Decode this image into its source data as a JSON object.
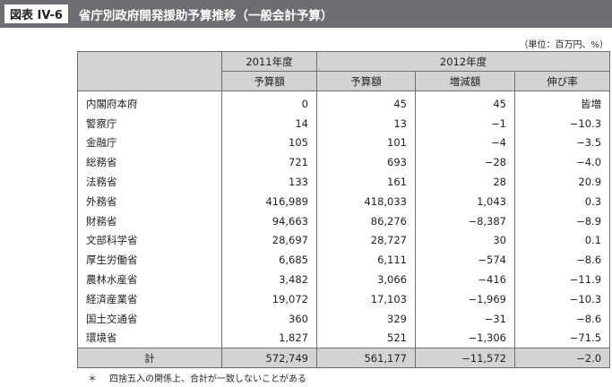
{
  "header": {
    "figure_label": "図表 IV-6",
    "title": "省庁別政府開発援助予算推移（一般会計予算）"
  },
  "unit_note": "（単位：百万円、%）",
  "table": {
    "year_2011": "2011年度",
    "year_2012": "2012年度",
    "columns": [
      "予算額",
      "予算額",
      "増減額",
      "伸び率"
    ],
    "rows": [
      {
        "name": "内閣府本府",
        "b2011": "0",
        "b2012": "45",
        "change": "45",
        "rate": "皆増"
      },
      {
        "name": "警察庁",
        "b2011": "14",
        "b2012": "13",
        "change": "−1",
        "rate": "−10.3"
      },
      {
        "name": "金融庁",
        "b2011": "105",
        "b2012": "101",
        "change": "−4",
        "rate": "−3.5"
      },
      {
        "name": "総務省",
        "b2011": "721",
        "b2012": "693",
        "change": "−28",
        "rate": "−4.0"
      },
      {
        "name": "法務省",
        "b2011": "133",
        "b2012": "161",
        "change": "28",
        "rate": "20.9"
      },
      {
        "name": "外務省",
        "b2011": "416,989",
        "b2012": "418,033",
        "change": "1,043",
        "rate": "0.3"
      },
      {
        "name": "財務省",
        "b2011": "94,663",
        "b2012": "86,276",
        "change": "−8,387",
        "rate": "−8.9"
      },
      {
        "name": "文部科学省",
        "b2011": "28,697",
        "b2012": "28,727",
        "change": "30",
        "rate": "0.1"
      },
      {
        "name": "厚生労働省",
        "b2011": "6,685",
        "b2012": "6,111",
        "change": "−574",
        "rate": "−8.6"
      },
      {
        "name": "農林水産省",
        "b2011": "3,482",
        "b2012": "3,066",
        "change": "−416",
        "rate": "−11.9"
      },
      {
        "name": "経済産業省",
        "b2011": "19,072",
        "b2012": "17,103",
        "change": "−1,969",
        "rate": "−10.3"
      },
      {
        "name": "国土交通省",
        "b2011": "360",
        "b2012": "329",
        "change": "−31",
        "rate": "−8.6"
      },
      {
        "name": "環境省",
        "b2011": "1,827",
        "b2012": "521",
        "change": "−1,306",
        "rate": "−71.5"
      }
    ],
    "total": {
      "name": "計",
      "b2011": "572,749",
      "b2012": "561,177",
      "change": "−11,572",
      "rate": "−2.0"
    }
  },
  "footnote": {
    "mark": "＊",
    "text": "四捨五入の関係上、合計が一致しないことがある"
  }
}
